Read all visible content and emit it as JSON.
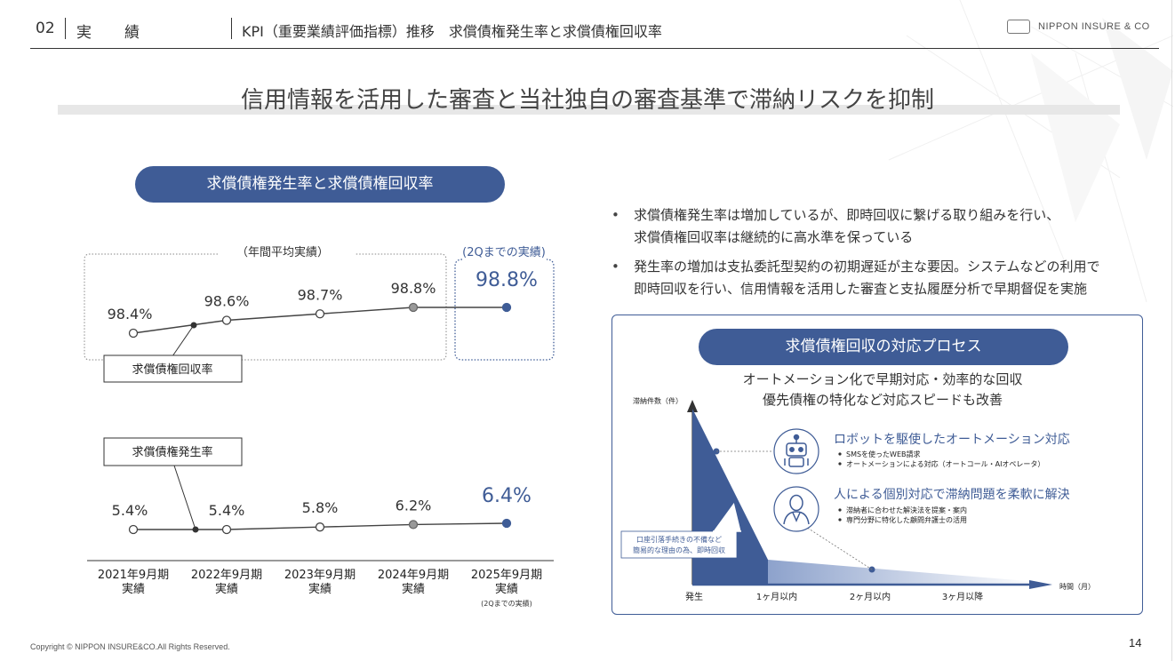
{
  "header": {
    "section_number": "02",
    "section_title": "実　績",
    "subtitle": "KPI（重要業績評価指標）推移　求償債権発生率と求償債権回収率",
    "company": "NIPPON INSURE & CO"
  },
  "main_title": "信用情報を活用した審査と当社独自の審査基準で滞納リスクを抑制",
  "chart_section": {
    "pill_label": "求償債権発生率と求償債権回収率",
    "annual_label": "（年間平均実績）",
    "partial_label": "(2Qまでの実績)"
  },
  "chart_data": {
    "type": "line",
    "title": "求償債権発生率と求償債権回収率",
    "categories": [
      [
        "2021年9月期",
        "実績"
      ],
      [
        "2022年9月期",
        "実績"
      ],
      [
        "2023年9月期",
        "実績"
      ],
      [
        "2024年9月期",
        "実績"
      ],
      [
        "2025年9月期",
        "実績"
      ]
    ],
    "category_note": "(2Qまでの実績)",
    "series": [
      {
        "name": "求償債権回収率",
        "values": [
          98.4,
          98.6,
          98.7,
          98.8,
          98.8
        ],
        "labels": [
          "98.4%",
          "98.6%",
          "98.7%",
          "98.8%",
          "98.8%"
        ]
      },
      {
        "name": "求償債権発生率",
        "values": [
          5.4,
          5.4,
          5.8,
          6.2,
          6.4
        ],
        "labels": [
          "5.4%",
          "5.4%",
          "5.8%",
          "6.2%",
          "6.4%"
        ]
      }
    ],
    "colors": {
      "line": "#444444",
      "highlight": "#3f5c96",
      "grey_marker": "#999999"
    }
  },
  "bullets": [
    [
      "求償債権発生率は増加しているが、即時回収に繋げる取り組みを行い、",
      "求償債権回収率は継続的に高水準を保っている"
    ],
    [
      "発生率の増加は支払委託型契約の初期遅延が主な要因。システムなどの利用で",
      "即時回収を行い、信用情報を活用した審査と支払履歴分析で早期督促を実施"
    ]
  ],
  "process": {
    "pill_label": "求償債権回収の対応プロセス",
    "sub1": "オートメーション化で早期対応・効率的な回収",
    "sub2": "優先債権の特化など対応スピードも改善",
    "y_axis_label": "滞納件数（件）",
    "x_axis_label": "時間（月）",
    "x_ticks": [
      "発生",
      "1ヶ月以内",
      "2ヶ月以内",
      "3ヶ月以降"
    ],
    "callout": [
      "口座引落手続きの不備など",
      "簡易的な理由の為、即時回収"
    ],
    "items": [
      {
        "icon": "robot-icon",
        "title": "ロボットを駆使したオートメーション対応",
        "points": [
          "SMSを使ったWEB請求",
          "オートメーションによる対応（オートコール・AIオペレータ）"
        ]
      },
      {
        "icon": "person-icon",
        "title": "人による個別対応で滞納問題を柔軟に解決",
        "points": [
          "滞納者に合わせた解決法を提案・案内",
          "専門分野に特化した顧問弁護士の活用"
        ]
      }
    ]
  },
  "footer": {
    "copyright": "Copyright © NIPPON INSURE&CO.All Rights Reserved.",
    "page_number": "14"
  }
}
